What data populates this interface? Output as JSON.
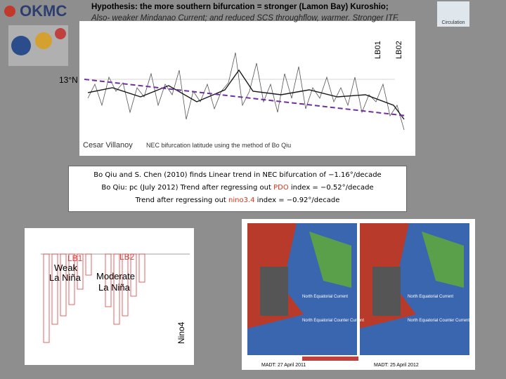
{
  "logo": "OKMC",
  "corner_label": "Circulation",
  "title": "Hypothesis: the more southern bifurcation = stronger (Lamon Bay) Kuroshio;",
  "subtitle": "Also- weaker Mindanao Current; and reduced SCS throughflow, warmer. Stronger ITF.",
  "top_chart": {
    "lb01": "LB01",
    "lb02": "LB02",
    "latitude": "13°N",
    "author": "Cesar Villanoy",
    "caption": "NEC bifurcation latitude using the method of Bo Qiu"
  },
  "box": {
    "line1": "Bo Qiu and S. Chen (2010) finds Linear trend in NEC bifurcation of −1.16°/decade",
    "line2": [
      "Bo Qiu: pc (July 2012) Trend after regressing out ",
      "PDO",
      " index = −0.52°/decade"
    ],
    "line3": [
      "Trend after regressing out ",
      "nino3.4",
      " index = −0.92°/decade"
    ]
  },
  "nino_chart": {
    "lb1": "LB1",
    "lb2": "LB2",
    "weak_1": "Weak",
    "weak_2": "La Niña",
    "moderate_1": "Moderate",
    "moderate_2": "La Niña",
    "index": "Nino4"
  },
  "maps": {
    "nec": "North Equatorial Current",
    "necc": "North Equatorial Counter Current",
    "date_left": "MADT: 27 April 2011",
    "date_right": "MADT: 25 April 2012"
  }
}
